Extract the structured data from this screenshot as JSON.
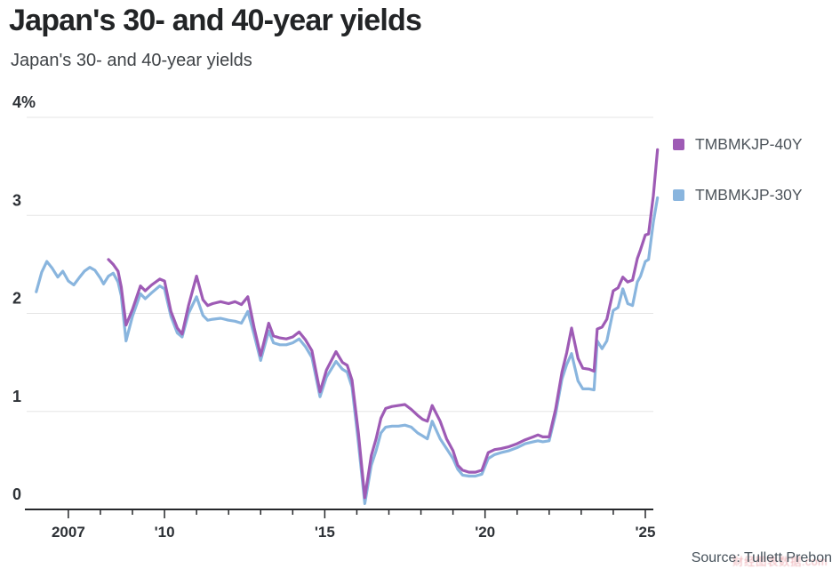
{
  "header": {
    "title": "Japan's 30- and 40-year yields",
    "subtitle": "Japan's 30- and 40-year yields"
  },
  "source": {
    "label": "Source: Tullett Prebon"
  },
  "watermark": {
    "text": "财经图表数据.com"
  },
  "colors": {
    "series_40y": "#9e5bb5",
    "series_30y": "#89b5de",
    "gridline": "#e5e5e5",
    "axis": "#26282b"
  },
  "chart_data": {
    "type": "line",
    "title": "Japan's 30- and 40-year yields",
    "xlabel": "",
    "ylabel": "%",
    "ylim": [
      0,
      4
    ],
    "xlim": [
      2005.7,
      2025.25
    ],
    "grid": "horizontal",
    "legend_position": "right",
    "yticks": {
      "values": [
        0,
        1,
        2,
        3,
        4
      ],
      "labels": [
        "0",
        "1",
        "2",
        "3",
        "4%"
      ]
    },
    "xticks": {
      "start": 2007,
      "end": 2025,
      "major": [
        2007,
        2010,
        2015,
        2020,
        2025
      ],
      "labels": {
        "2007": "2007",
        "2010": "'10",
        "2015": "'15",
        "2020": "'20",
        "2025": "'25"
      }
    },
    "series": [
      {
        "name": "TMBMKJP-40Y",
        "color": "#9e5bb5",
        "points": [
          [
            2008.25,
            2.55
          ],
          [
            2008.4,
            2.5
          ],
          [
            2008.55,
            2.43
          ],
          [
            2008.65,
            2.27
          ],
          [
            2008.8,
            1.88
          ],
          [
            2009.0,
            2.04
          ],
          [
            2009.25,
            2.28
          ],
          [
            2009.4,
            2.23
          ],
          [
            2009.6,
            2.29
          ],
          [
            2009.85,
            2.35
          ],
          [
            2010.0,
            2.33
          ],
          [
            2010.2,
            2.02
          ],
          [
            2010.4,
            1.85
          ],
          [
            2010.55,
            1.79
          ],
          [
            2010.75,
            2.08
          ],
          [
            2011.0,
            2.38
          ],
          [
            2011.2,
            2.14
          ],
          [
            2011.35,
            2.08
          ],
          [
            2011.5,
            2.1
          ],
          [
            2011.75,
            2.12
          ],
          [
            2012.0,
            2.1
          ],
          [
            2012.2,
            2.12
          ],
          [
            2012.4,
            2.09
          ],
          [
            2012.6,
            2.17
          ],
          [
            2012.8,
            1.85
          ],
          [
            2013.0,
            1.57
          ],
          [
            2013.25,
            1.9
          ],
          [
            2013.4,
            1.77
          ],
          [
            2013.6,
            1.75
          ],
          [
            2013.8,
            1.74
          ],
          [
            2014.0,
            1.76
          ],
          [
            2014.2,
            1.81
          ],
          [
            2014.4,
            1.73
          ],
          [
            2014.6,
            1.62
          ],
          [
            2014.85,
            1.2
          ],
          [
            2015.05,
            1.42
          ],
          [
            2015.35,
            1.61
          ],
          [
            2015.55,
            1.5
          ],
          [
            2015.7,
            1.47
          ],
          [
            2015.85,
            1.32
          ],
          [
            2016.05,
            0.78
          ],
          [
            2016.25,
            0.12
          ],
          [
            2016.45,
            0.55
          ],
          [
            2016.6,
            0.72
          ],
          [
            2016.75,
            0.93
          ],
          [
            2016.9,
            1.03
          ],
          [
            2017.1,
            1.05
          ],
          [
            2017.3,
            1.06
          ],
          [
            2017.5,
            1.07
          ],
          [
            2017.7,
            1.02
          ],
          [
            2017.9,
            0.96
          ],
          [
            2018.05,
            0.92
          ],
          [
            2018.2,
            0.9
          ],
          [
            2018.35,
            1.06
          ],
          [
            2018.6,
            0.9
          ],
          [
            2018.8,
            0.72
          ],
          [
            2019.0,
            0.6
          ],
          [
            2019.15,
            0.45
          ],
          [
            2019.3,
            0.4
          ],
          [
            2019.5,
            0.38
          ],
          [
            2019.7,
            0.38
          ],
          [
            2019.9,
            0.4
          ],
          [
            2020.1,
            0.58
          ],
          [
            2020.3,
            0.61
          ],
          [
            2020.5,
            0.62
          ],
          [
            2020.75,
            0.64
          ],
          [
            2021.0,
            0.67
          ],
          [
            2021.25,
            0.71
          ],
          [
            2021.5,
            0.74
          ],
          [
            2021.65,
            0.76
          ],
          [
            2021.8,
            0.74
          ],
          [
            2022.0,
            0.74
          ],
          [
            2022.2,
            1.02
          ],
          [
            2022.4,
            1.4
          ],
          [
            2022.55,
            1.6
          ],
          [
            2022.7,
            1.85
          ],
          [
            2022.9,
            1.54
          ],
          [
            2023.05,
            1.44
          ],
          [
            2023.25,
            1.43
          ],
          [
            2023.4,
            1.41
          ],
          [
            2023.5,
            1.84
          ],
          [
            2023.65,
            1.86
          ],
          [
            2023.8,
            1.94
          ],
          [
            2024.0,
            2.23
          ],
          [
            2024.15,
            2.26
          ],
          [
            2024.3,
            2.37
          ],
          [
            2024.45,
            2.32
          ],
          [
            2024.6,
            2.34
          ],
          [
            2024.75,
            2.56
          ],
          [
            2024.85,
            2.65
          ],
          [
            2025.0,
            2.8
          ],
          [
            2025.1,
            2.81
          ],
          [
            2025.25,
            3.2
          ],
          [
            2025.38,
            3.67
          ]
        ]
      },
      {
        "name": "TMBMKJP-30Y",
        "color": "#89b5de",
        "points": [
          [
            2006.0,
            2.22
          ],
          [
            2006.17,
            2.42
          ],
          [
            2006.33,
            2.53
          ],
          [
            2006.5,
            2.46
          ],
          [
            2006.67,
            2.37
          ],
          [
            2006.83,
            2.43
          ],
          [
            2007.0,
            2.33
          ],
          [
            2007.17,
            2.29
          ],
          [
            2007.33,
            2.36
          ],
          [
            2007.5,
            2.43
          ],
          [
            2007.67,
            2.47
          ],
          [
            2007.83,
            2.44
          ],
          [
            2008.0,
            2.36
          ],
          [
            2008.1,
            2.3
          ],
          [
            2008.25,
            2.38
          ],
          [
            2008.4,
            2.41
          ],
          [
            2008.55,
            2.32
          ],
          [
            2008.65,
            2.18
          ],
          [
            2008.8,
            1.72
          ],
          [
            2009.0,
            1.97
          ],
          [
            2009.25,
            2.2
          ],
          [
            2009.4,
            2.15
          ],
          [
            2009.6,
            2.21
          ],
          [
            2009.85,
            2.28
          ],
          [
            2010.0,
            2.25
          ],
          [
            2010.2,
            1.97
          ],
          [
            2010.4,
            1.8
          ],
          [
            2010.55,
            1.76
          ],
          [
            2010.75,
            2.0
          ],
          [
            2011.0,
            2.17
          ],
          [
            2011.2,
            1.98
          ],
          [
            2011.35,
            1.93
          ],
          [
            2011.5,
            1.94
          ],
          [
            2011.75,
            1.95
          ],
          [
            2012.0,
            1.93
          ],
          [
            2012.2,
            1.92
          ],
          [
            2012.4,
            1.9
          ],
          [
            2012.6,
            2.02
          ],
          [
            2012.8,
            1.78
          ],
          [
            2013.0,
            1.52
          ],
          [
            2013.25,
            1.82
          ],
          [
            2013.4,
            1.7
          ],
          [
            2013.6,
            1.68
          ],
          [
            2013.8,
            1.68
          ],
          [
            2014.0,
            1.7
          ],
          [
            2014.2,
            1.74
          ],
          [
            2014.4,
            1.66
          ],
          [
            2014.6,
            1.55
          ],
          [
            2014.85,
            1.15
          ],
          [
            2015.05,
            1.35
          ],
          [
            2015.35,
            1.51
          ],
          [
            2015.55,
            1.43
          ],
          [
            2015.7,
            1.4
          ],
          [
            2015.85,
            1.25
          ],
          [
            2016.05,
            0.68
          ],
          [
            2016.25,
            0.06
          ],
          [
            2016.45,
            0.45
          ],
          [
            2016.6,
            0.6
          ],
          [
            2016.75,
            0.78
          ],
          [
            2016.9,
            0.84
          ],
          [
            2017.1,
            0.85
          ],
          [
            2017.3,
            0.85
          ],
          [
            2017.5,
            0.86
          ],
          [
            2017.7,
            0.84
          ],
          [
            2017.9,
            0.78
          ],
          [
            2018.05,
            0.75
          ],
          [
            2018.2,
            0.72
          ],
          [
            2018.35,
            0.9
          ],
          [
            2018.6,
            0.72
          ],
          [
            2018.8,
            0.62
          ],
          [
            2019.0,
            0.52
          ],
          [
            2019.15,
            0.41
          ],
          [
            2019.3,
            0.35
          ],
          [
            2019.5,
            0.34
          ],
          [
            2019.7,
            0.34
          ],
          [
            2019.9,
            0.36
          ],
          [
            2020.1,
            0.52
          ],
          [
            2020.3,
            0.56
          ],
          [
            2020.5,
            0.58
          ],
          [
            2020.75,
            0.6
          ],
          [
            2021.0,
            0.63
          ],
          [
            2021.25,
            0.67
          ],
          [
            2021.5,
            0.69
          ],
          [
            2021.65,
            0.7
          ],
          [
            2021.8,
            0.69
          ],
          [
            2022.0,
            0.7
          ],
          [
            2022.2,
            0.97
          ],
          [
            2022.4,
            1.33
          ],
          [
            2022.55,
            1.48
          ],
          [
            2022.7,
            1.59
          ],
          [
            2022.9,
            1.31
          ],
          [
            2023.05,
            1.23
          ],
          [
            2023.25,
            1.23
          ],
          [
            2023.4,
            1.22
          ],
          [
            2023.5,
            1.72
          ],
          [
            2023.65,
            1.64
          ],
          [
            2023.8,
            1.72
          ],
          [
            2024.0,
            2.03
          ],
          [
            2024.15,
            2.06
          ],
          [
            2024.3,
            2.25
          ],
          [
            2024.45,
            2.1
          ],
          [
            2024.6,
            2.08
          ],
          [
            2024.75,
            2.32
          ],
          [
            2024.85,
            2.38
          ],
          [
            2025.0,
            2.53
          ],
          [
            2025.1,
            2.55
          ],
          [
            2025.25,
            2.93
          ],
          [
            2025.38,
            3.18
          ]
        ]
      }
    ]
  }
}
